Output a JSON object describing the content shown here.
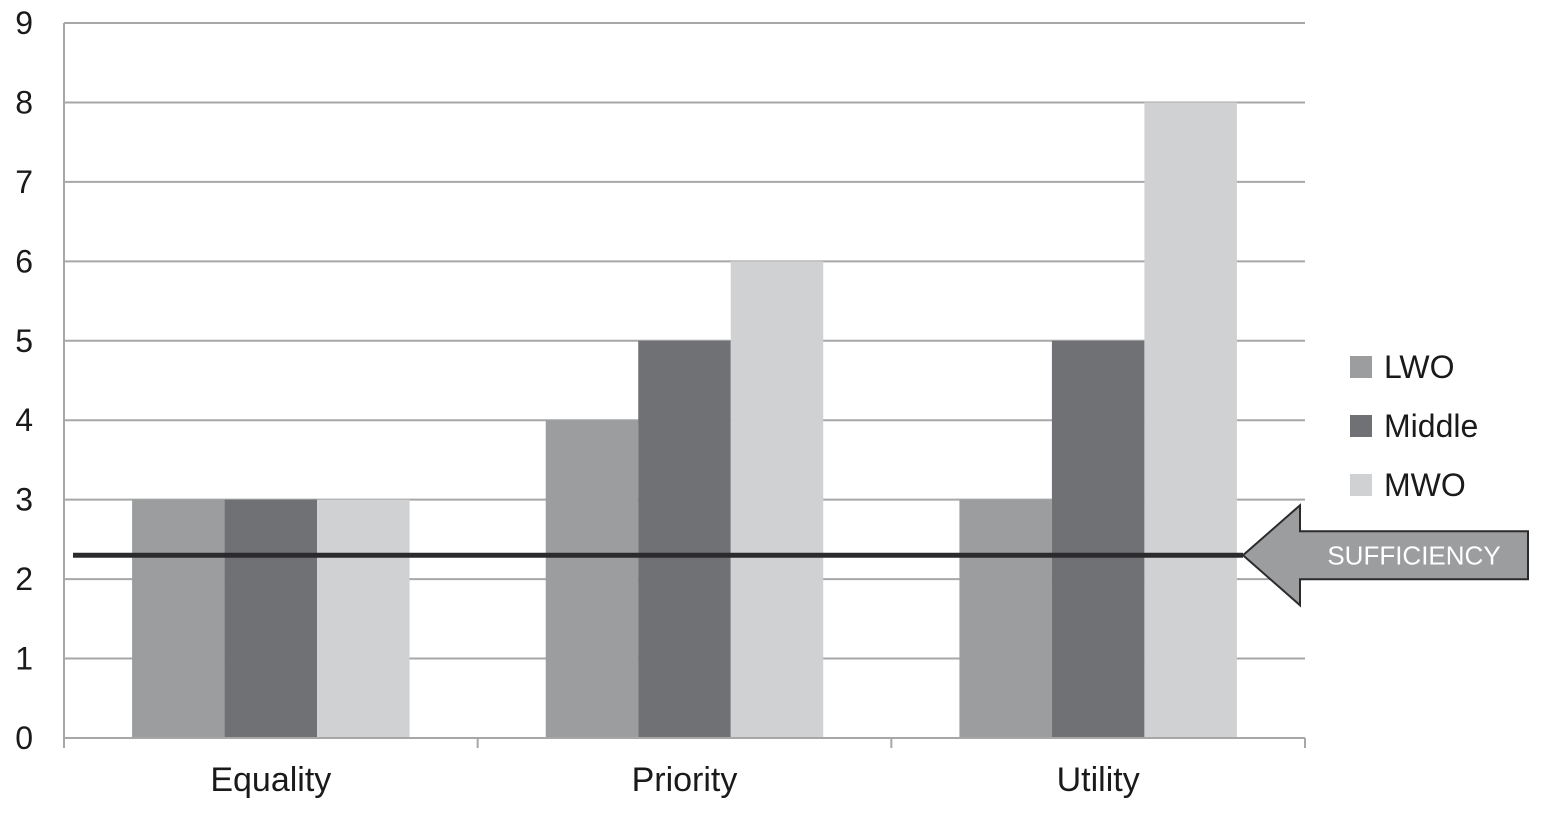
{
  "chart_data": {
    "type": "bar",
    "title": "",
    "xlabel": "",
    "ylabel": "",
    "ylim": [
      0,
      9
    ],
    "yticks": [
      0,
      1,
      2,
      3,
      4,
      5,
      6,
      7,
      8,
      9
    ],
    "grid": true,
    "legend_position": "right",
    "categories": [
      "Equality",
      "Priority",
      "Utility"
    ],
    "series": [
      {
        "name": "LWO",
        "values": [
          3,
          4,
          3
        ],
        "color": "#9c9d9f"
      },
      {
        "name": "Middle",
        "values": [
          3,
          5,
          5
        ],
        "color": "#707174"
      },
      {
        "name": "MWO",
        "values": [
          3,
          6,
          8
        ],
        "color": "#d0d1d3"
      }
    ],
    "reference_line": {
      "value": 2.3,
      "label": "SUFFICIENCY",
      "color": "#2b2b2d",
      "arrow_color": "#9c9d9f"
    },
    "colors": {
      "grid": "#a7a7a7",
      "axis": "#a7a7a7",
      "text": "#1a1a1a"
    }
  }
}
